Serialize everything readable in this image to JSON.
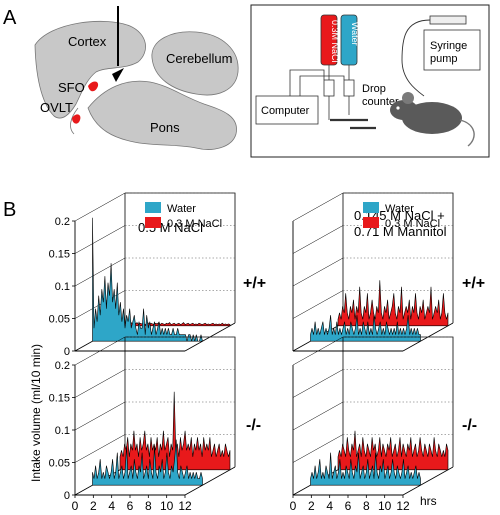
{
  "panel_a": {
    "label": "A",
    "brain": {
      "cortex": "Cortex",
      "cerebellum": "Cerebellum",
      "sfo": "SFO",
      "ovlt": "OVLT",
      "pons": "Pons"
    },
    "setup": {
      "nacl_bottle": "0.3M NaCl",
      "water_bottle": "Water",
      "drop_counter_line1": "Drop",
      "drop_counter_line2": "counter",
      "computer": "Computer",
      "syringe_line1": "Syringe",
      "syringe_line2": "pump"
    },
    "colors": {
      "water": "#2ea6c8",
      "nacl": "#e8191b",
      "brain": "#c8c8c8",
      "mouse": "#5a5a5a"
    }
  },
  "panel_b": {
    "label": "B",
    "col1_title": "0.5 M NaCl",
    "col2_title_line1": "0.145 M NaCl +",
    "col2_title_line2": "0.71 M Mannitol",
    "row1_genotype": "+/+",
    "row2_genotype": "-/-",
    "ylabel": "Intake volume (ml/10 min)",
    "xlabel": "hrs",
    "y_ticks": [
      "0",
      "0.05",
      "0.1",
      "0.15",
      "0.2"
    ],
    "x_ticks": [
      "0",
      "2",
      "4",
      "6",
      "8",
      "10",
      "12"
    ],
    "legend_water": "Water",
    "legend_nacl": "0.3 M NaCl"
  },
  "chart_data": [
    {
      "type": "area",
      "title": "0.5 M NaCl, +/+",
      "xlabel": "hrs",
      "ylabel": "Intake volume (ml/10 min)",
      "xlim": [
        0,
        12
      ],
      "ylim": [
        0,
        0.2
      ],
      "series": [
        {
          "name": "Water",
          "values": [
            0.19,
            0.02,
            0.05,
            0.03,
            0.07,
            0.04,
            0.08,
            0.06,
            0.1,
            0.05,
            0.09,
            0.07,
            0.12,
            0.06,
            0.08,
            0.05,
            0.09,
            0.04,
            0.06,
            0.03,
            0.05,
            0.02,
            0.04,
            0.03,
            0.05,
            0.02,
            0.03,
            0.04,
            0.02,
            0.01,
            0.03,
            0.02,
            0.02,
            0.05,
            0.01,
            0.04,
            0.02,
            0.03,
            0.01,
            0.02,
            0.03,
            0.01,
            0.02,
            0.03,
            0.01,
            0.02,
            0.01,
            0.02,
            0.01,
            0.02,
            0.01,
            0.01,
            0.02,
            0.01,
            0.01,
            0.02,
            0.01,
            0.01,
            0.01,
            0.01,
            0.01,
            0.0,
            0.01,
            0.01,
            0.0,
            0.01,
            0.0,
            0.01,
            0.0,
            0.0,
            0.01,
            0.0
          ]
        },
        {
          "name": "0.3 M NaCl",
          "values": [
            0.003,
            0.004,
            0.002,
            0.005,
            0.003,
            0.004,
            0.003,
            0.006,
            0.002,
            0.004,
            0.003,
            0.005,
            0.002,
            0.004,
            0.003,
            0.004,
            0.002,
            0.003,
            0.005,
            0.002,
            0.004,
            0.003,
            0.002,
            0.004,
            0.003,
            0.005,
            0.002,
            0.004,
            0.003,
            0.002,
            0.004,
            0.003,
            0.005,
            0.002,
            0.003,
            0.004,
            0.002,
            0.003,
            0.004,
            0.002,
            0.003,
            0.005,
            0.002,
            0.003,
            0.004,
            0.002,
            0.003,
            0.004,
            0.002,
            0.003,
            0.002,
            0.004,
            0.003,
            0.002,
            0.003,
            0.004,
            0.002,
            0.003,
            0.002,
            0.003,
            0.004,
            0.002,
            0.003,
            0.002,
            0.003,
            0.002,
            0.004,
            0.002,
            0.003,
            0.002,
            0.003,
            0.002
          ]
        }
      ]
    },
    {
      "type": "area",
      "title": "0.145 M NaCl + 0.71 M Mannitol, +/+",
      "xlabel": "hrs",
      "ylabel": "Intake volume (ml/10 min)",
      "xlim": [
        0,
        12
      ],
      "ylim": [
        0,
        0.2
      ],
      "series": [
        {
          "name": "Water",
          "values": [
            0.01,
            0.02,
            0.01,
            0.03,
            0.01,
            0.02,
            0.01,
            0.02,
            0.03,
            0.01,
            0.02,
            0.01,
            0.02,
            0.04,
            0.01,
            0.02,
            0.01,
            0.03,
            0.01,
            0.02,
            0.01,
            0.02,
            0.03,
            0.01,
            0.02,
            0.01,
            0.03,
            0.02,
            0.01,
            0.02,
            0.04,
            0.01,
            0.02,
            0.01,
            0.03,
            0.02,
            0.01,
            0.03,
            0.01,
            0.02,
            0.01,
            0.04,
            0.02,
            0.01,
            0.02,
            0.03,
            0.01,
            0.02,
            0.01,
            0.03,
            0.02,
            0.01,
            0.02,
            0.01,
            0.02,
            0.01,
            0.03,
            0.01,
            0.02,
            0.01,
            0.02,
            0.01,
            0.02,
            0.04,
            0.01,
            0.02,
            0.01,
            0.02,
            0.01,
            0.02,
            0.01,
            0.01
          ]
        },
        {
          "name": "0.3 M NaCl",
          "values": [
            0.01,
            0.02,
            0.01,
            0.03,
            0.02,
            0.05,
            0.02,
            0.01,
            0.03,
            0.02,
            0.04,
            0.01,
            0.03,
            0.02,
            0.06,
            0.02,
            0.01,
            0.03,
            0.02,
            0.05,
            0.01,
            0.02,
            0.04,
            0.02,
            0.01,
            0.03,
            0.02,
            0.07,
            0.02,
            0.01,
            0.03,
            0.02,
            0.04,
            0.01,
            0.02,
            0.03,
            0.05,
            0.02,
            0.01,
            0.03,
            0.02,
            0.06,
            0.01,
            0.02,
            0.03,
            0.02,
            0.04,
            0.01,
            0.03,
            0.02,
            0.05,
            0.02,
            0.01,
            0.03,
            0.02,
            0.04,
            0.01,
            0.02,
            0.03,
            0.02,
            0.06,
            0.01,
            0.02,
            0.03,
            0.02,
            0.04,
            0.01,
            0.02,
            0.05,
            0.02,
            0.01,
            0.02
          ]
        }
      ]
    },
    {
      "type": "area",
      "title": "0.5 M NaCl, -/-",
      "xlabel": "hrs",
      "ylabel": "Intake volume (ml/10 min)",
      "xlim": [
        0,
        12
      ],
      "ylim": [
        0,
        0.2
      ],
      "series": [
        {
          "name": "Water",
          "values": [
            0.02,
            0.01,
            0.03,
            0.01,
            0.02,
            0.04,
            0.01,
            0.02,
            0.01,
            0.03,
            0.02,
            0.01,
            0.02,
            0.04,
            0.01,
            0.02,
            0.05,
            0.01,
            0.02,
            0.03,
            0.01,
            0.02,
            0.06,
            0.01,
            0.02,
            0.03,
            0.01,
            0.04,
            0.02,
            0.01,
            0.03,
            0.02,
            0.05,
            0.01,
            0.02,
            0.03,
            0.01,
            0.04,
            0.02,
            0.01,
            0.06,
            0.02,
            0.01,
            0.03,
            0.02,
            0.04,
            0.01,
            0.02,
            0.05,
            0.02,
            0.01,
            0.03,
            0.02,
            0.04,
            0.07,
            0.02,
            0.01,
            0.03,
            0.02,
            0.01,
            0.02,
            0.03,
            0.01,
            0.02,
            0.01,
            0.02,
            0.01,
            0.02,
            0.01,
            0.01,
            0.02,
            0.01
          ]
        },
        {
          "name": "0.3 M NaCl",
          "values": [
            0.02,
            0.03,
            0.02,
            0.04,
            0.03,
            0.05,
            0.02,
            0.04,
            0.03,
            0.06,
            0.03,
            0.04,
            0.02,
            0.05,
            0.03,
            0.04,
            0.06,
            0.03,
            0.04,
            0.02,
            0.05,
            0.03,
            0.04,
            0.03,
            0.05,
            0.02,
            0.04,
            0.03,
            0.06,
            0.03,
            0.04,
            0.05,
            0.02,
            0.04,
            0.03,
            0.12,
            0.03,
            0.04,
            0.02,
            0.05,
            0.03,
            0.04,
            0.06,
            0.03,
            0.04,
            0.03,
            0.05,
            0.02,
            0.04,
            0.03,
            0.05,
            0.03,
            0.04,
            0.02,
            0.05,
            0.03,
            0.04,
            0.03,
            0.05,
            0.02,
            0.03,
            0.04,
            0.02,
            0.03,
            0.04,
            0.02,
            0.03,
            0.02,
            0.04,
            0.03,
            0.02,
            0.03
          ]
        }
      ]
    },
    {
      "type": "area",
      "title": "0.145 M NaCl + 0.71 M Mannitol, -/-",
      "xlabel": "hrs",
      "ylabel": "Intake volume (ml/10 min)",
      "xlim": [
        0,
        12
      ],
      "ylim": [
        0,
        0.2
      ],
      "series": [
        {
          "name": "Water",
          "values": [
            0.01,
            0.02,
            0.01,
            0.03,
            0.01,
            0.02,
            0.04,
            0.01,
            0.02,
            0.01,
            0.03,
            0.02,
            0.01,
            0.05,
            0.01,
            0.02,
            0.03,
            0.01,
            0.02,
            0.04,
            0.01,
            0.02,
            0.01,
            0.03,
            0.02,
            0.01,
            0.04,
            0.02,
            0.01,
            0.03,
            0.02,
            0.05,
            0.01,
            0.02,
            0.03,
            0.01,
            0.02,
            0.04,
            0.01,
            0.02,
            0.03,
            0.01,
            0.05,
            0.02,
            0.01,
            0.03,
            0.02,
            0.04,
            0.01,
            0.02,
            0.03,
            0.01,
            0.02,
            0.04,
            0.02,
            0.01,
            0.03,
            0.02,
            0.01,
            0.02,
            0.04,
            0.01,
            0.02,
            0.03,
            0.01,
            0.02,
            0.01,
            0.02,
            0.03,
            0.01,
            0.02,
            0.01
          ]
        },
        {
          "name": "0.3 M NaCl",
          "values": [
            0.02,
            0.03,
            0.02,
            0.04,
            0.03,
            0.02,
            0.05,
            0.03,
            0.02,
            0.04,
            0.03,
            0.06,
            0.02,
            0.03,
            0.04,
            0.02,
            0.05,
            0.03,
            0.02,
            0.04,
            0.03,
            0.02,
            0.05,
            0.03,
            0.04,
            0.02,
            0.03,
            0.05,
            0.02,
            0.04,
            0.03,
            0.02,
            0.04,
            0.03,
            0.05,
            0.02,
            0.03,
            0.04,
            0.02,
            0.03,
            0.05,
            0.02,
            0.04,
            0.03,
            0.02,
            0.04,
            0.03,
            0.05,
            0.02,
            0.03,
            0.04,
            0.02,
            0.03,
            0.05,
            0.03,
            0.02,
            0.04,
            0.03,
            0.02,
            0.04,
            0.03,
            0.02,
            0.05,
            0.03,
            0.02,
            0.04,
            0.03,
            0.02,
            0.03,
            0.02,
            0.04,
            0.03
          ]
        }
      ]
    }
  ]
}
